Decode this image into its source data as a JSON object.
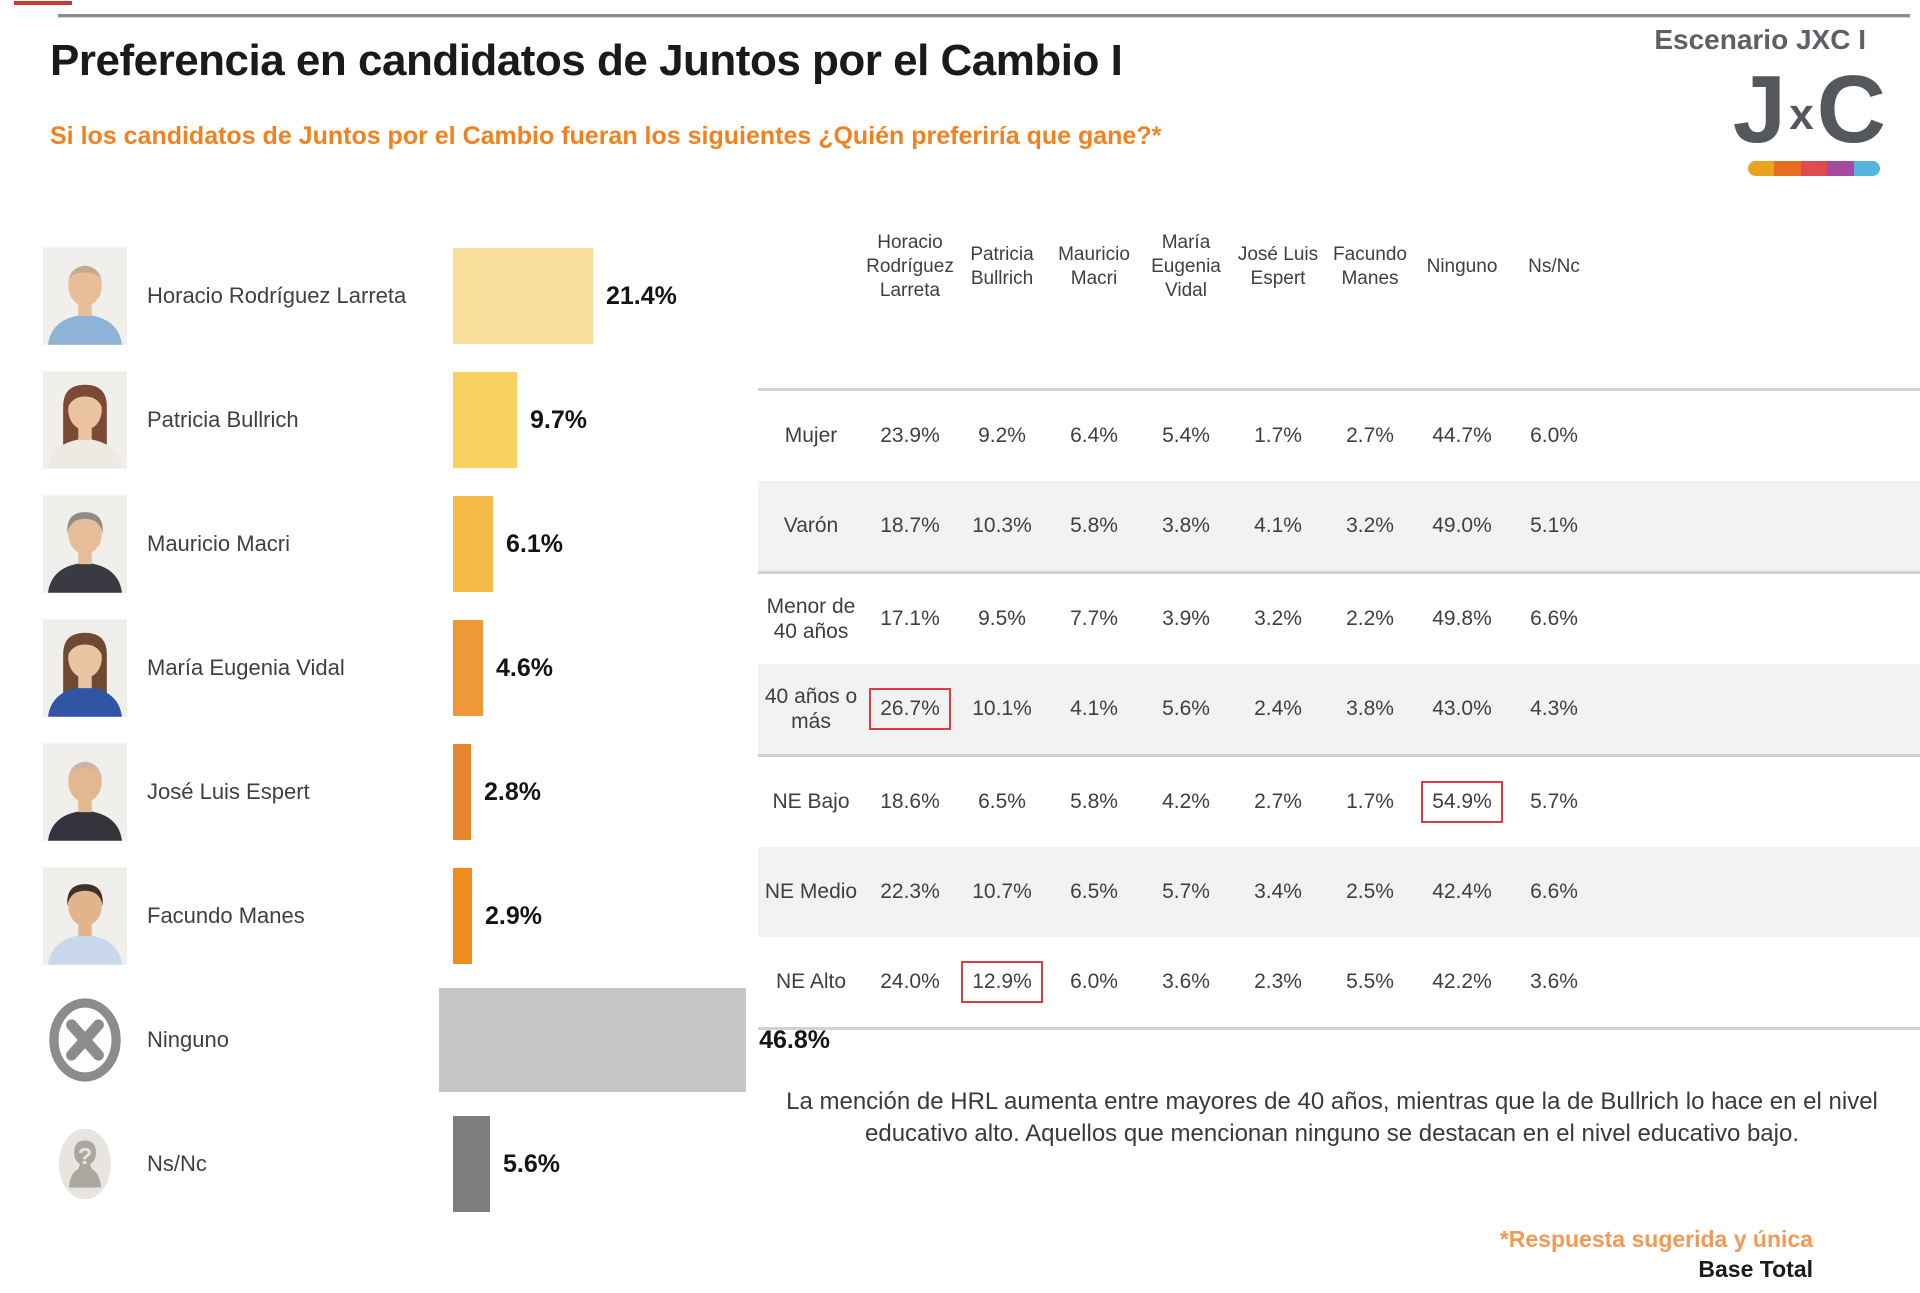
{
  "slide": {
    "title": "Preferencia en candidatos de Juntos por el Cambio I",
    "question": "Si los candidatos de Juntos por el Cambio fueran los siguientes ¿Quién preferiría que gane?*",
    "scenario_label": "Escenario JXC I",
    "logo": {
      "letter_j": "J",
      "letter_x": "x",
      "letter_c": "C",
      "bar_colors": [
        "#E8A41D",
        "#E86E1F",
        "#DF4B50",
        "#A54B9F",
        "#56B3DB"
      ]
    },
    "insight": "La mención de HRL aumenta entre mayores de 40 años, mientras que la de Bullrich lo hace en el nivel educativo alto. Aquellos que mencionan ninguno se destacan en el nivel educativo bajo.",
    "footnote": "*Respuesta sugerida y única",
    "base_label": "Base Total"
  },
  "colors": {
    "title_text": "#1A1A1A",
    "accent_orange": "#F08222",
    "footnote_orange": "#F09A55",
    "body_text": "#3D4045",
    "logo_gray": "#54575C",
    "rule_gray": "#8C8C8C",
    "row_shade": "#F2F2F2",
    "separator_gray": "#D2D2D2",
    "highlight_box_red": "#E23B3F"
  },
  "chart_data": [
    {
      "type": "bar",
      "orientation": "horizontal",
      "title": "Preferencia en candidatos de Juntos por el Cambio I",
      "unit": "%",
      "xlim": [
        0,
        50
      ],
      "grid": false,
      "categories": [
        "Horacio Rodríguez Larreta",
        "Patricia Bullrich",
        "Mauricio Macri",
        "María Eugenia Vidal",
        "José Luis Espert",
        "Facundo Manes",
        "Ninguno",
        "Ns/Nc"
      ],
      "values": [
        21.4,
        9.7,
        6.1,
        4.6,
        2.8,
        2.9,
        46.8,
        5.6
      ],
      "bar_colors": [
        "#F8DE9A",
        "#F6D160",
        "#F6BB46",
        "#EF9838",
        "#E8852F",
        "#F28B1E",
        "#C7C7C7",
        "#7E7E7E"
      ],
      "avatar_styles": [
        {
          "icon": "photo",
          "bald": true,
          "long": false,
          "hair": "#A29B90",
          "skin": "#E6BE97",
          "shirt": "#8FB3D6"
        },
        {
          "icon": "photo",
          "bald": false,
          "long": true,
          "hair": "#7B4935",
          "skin": "#EAC4A1",
          "shirt": "#EDEAE3"
        },
        {
          "icon": "photo",
          "bald": false,
          "long": false,
          "hair": "#8E8C88",
          "skin": "#E6BD98",
          "shirt": "#3A3A42"
        },
        {
          "icon": "photo",
          "bald": false,
          "long": true,
          "hair": "#6E4A33",
          "skin": "#EAC5A2",
          "shirt": "#2F55A3"
        },
        {
          "icon": "photo",
          "bald": true,
          "long": false,
          "hair": "#B9B5AE",
          "skin": "#E2B890",
          "shirt": "#33333B"
        },
        {
          "icon": "photo",
          "bald": false,
          "long": false,
          "hair": "#3E3228",
          "skin": "#E3B48C",
          "shirt": "#C9D8EA"
        },
        {
          "icon": "none-icon",
          "color": "#8C8C8C"
        },
        {
          "icon": "unknown-icon",
          "color": "#ACA79E"
        }
      ]
    },
    {
      "type": "table",
      "columns": [
        "Horacio Rodríguez Larreta",
        "Patricia Bullrich",
        "Mauricio Macri",
        "María Eugenia Vidal",
        "José Luis Espert",
        "Facundo Manes",
        "Ninguno",
        "Ns/Nc"
      ],
      "rows": [
        {
          "label": "Mujer",
          "shaded": false,
          "highlight_col": null,
          "values": [
            23.9,
            9.2,
            6.4,
            5.4,
            1.7,
            2.7,
            44.7,
            6.0
          ]
        },
        {
          "label": "Varón",
          "shaded": true,
          "highlight_col": null,
          "values": [
            18.7,
            10.3,
            5.8,
            3.8,
            4.1,
            3.2,
            49.0,
            5.1
          ]
        },
        {
          "label": "Menor de 40 años",
          "shaded": false,
          "highlight_col": null,
          "values": [
            17.1,
            9.5,
            7.7,
            3.9,
            3.2,
            2.2,
            49.8,
            6.6
          ]
        },
        {
          "label": "40 años o más",
          "shaded": true,
          "highlight_col": 0,
          "values": [
            26.7,
            10.1,
            4.1,
            5.6,
            2.4,
            3.8,
            43.0,
            4.3
          ]
        },
        {
          "label": "NE Bajo",
          "shaded": false,
          "highlight_col": 6,
          "values": [
            18.6,
            6.5,
            5.8,
            4.2,
            2.7,
            1.7,
            54.9,
            5.7
          ]
        },
        {
          "label": "NE Medio",
          "shaded": true,
          "highlight_col": null,
          "values": [
            22.3,
            10.7,
            6.5,
            5.7,
            3.4,
            2.5,
            42.4,
            6.6
          ]
        },
        {
          "label": "NE Alto",
          "shaded": false,
          "highlight_col": 1,
          "values": [
            24.0,
            12.9,
            6.0,
            3.6,
            2.3,
            5.5,
            42.2,
            3.6
          ]
        }
      ],
      "separator_above_rows": [
        0,
        2,
        4
      ],
      "bottom_rule_after_row": 6
    }
  ]
}
